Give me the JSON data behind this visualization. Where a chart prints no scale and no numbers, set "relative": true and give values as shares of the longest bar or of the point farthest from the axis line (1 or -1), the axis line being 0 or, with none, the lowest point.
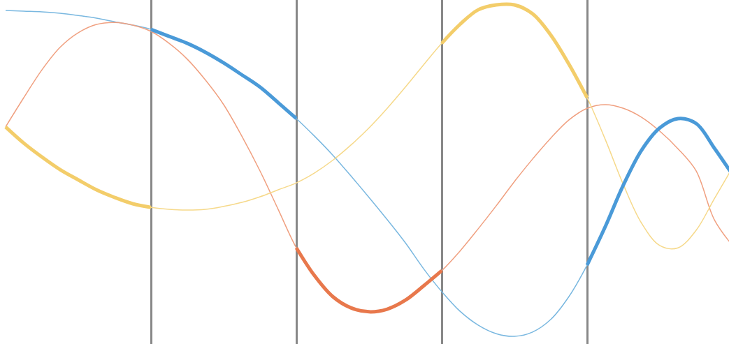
{
  "chart_data": {
    "type": "line",
    "relative": true,
    "grid": "x",
    "marker": "none",
    "line_style": "solid",
    "categories": [
      null,
      null,
      null,
      null,
      null,
      null,
      null,
      null,
      null,
      null,
      null,
      null,
      null,
      null,
      null,
      null,
      null,
      null,
      null,
      null,
      null,
      null,
      null,
      null,
      null,
      null,
      null,
      null,
      null,
      null,
      null,
      null,
      null,
      null,
      null,
      null,
      null,
      null,
      null,
      null,
      null
    ],
    "series": [
      {
        "color": "#7ab8e0",
        "values": [
          0.983,
          0.981,
          0.979,
          0.975,
          0.968,
          0.96,
          0.949,
          0.939,
          0.926,
          0.905,
          0.884,
          0.857,
          0.825,
          0.789,
          0.752,
          0.705,
          0.657,
          0.604,
          0.547,
          0.484,
          0.419,
          0.352,
          0.282,
          0.204,
          0.135,
          0.076,
          0.034,
          0.008,
          0,
          0.013,
          0.051,
          0.12,
          0.215,
          0.331,
          0.457,
          0.562,
          0.629,
          0.657,
          0.642,
          0.568,
          0.488
        ]
      },
      {
        "color": "#f0a080",
        "values": [
          0.632,
          0.72,
          0.804,
          0.872,
          0.916,
          0.941,
          0.947,
          0.939,
          0.92,
          0.884,
          0.836,
          0.773,
          0.699,
          0.604,
          0.499,
          0.383,
          0.267,
          0.183,
          0.12,
          0.086,
          0.074,
          0.082,
          0.109,
          0.152,
          0.198,
          0.257,
          0.324,
          0.394,
          0.467,
          0.535,
          0.598,
          0.653,
          0.688,
          0.699,
          0.688,
          0.661,
          0.619,
          0.566,
          0.499,
          0.352,
          0.274
        ]
      },
      {
        "color": "#f6d98a",
        "values": [
          0.632,
          0.583,
          0.541,
          0.503,
          0.472,
          0.442,
          0.419,
          0.4,
          0.389,
          0.383,
          0.381,
          0.383,
          0.392,
          0.404,
          0.421,
          0.442,
          0.463,
          0.493,
          0.531,
          0.577,
          0.629,
          0.688,
          0.752,
          0.819,
          0.884,
          0.941,
          0.985,
          1,
          1,
          0.973,
          0.909,
          0.821,
          0.72,
          0.594,
          0.457,
          0.341,
          0.274,
          0.267,
          0.32,
          0.415,
          0.509
        ]
      },
      {
        "color": "#f3cd6a",
        "values": [
          0.632,
          0.583,
          0.541,
          0.503,
          0.472,
          0.442,
          0.419,
          0.4,
          0.389,
          null,
          null,
          null,
          null,
          null,
          null,
          null,
          null,
          null,
          null,
          null,
          null,
          null,
          null,
          null,
          null,
          null,
          null,
          null,
          null,
          null,
          null,
          null,
          null,
          null,
          null,
          null,
          null,
          null,
          null,
          null,
          null
        ]
      },
      {
        "color": "#4a9ad8",
        "values": [
          null,
          null,
          null,
          null,
          null,
          null,
          null,
          null,
          0.926,
          0.905,
          0.884,
          0.857,
          0.825,
          0.789,
          0.752,
          0.705,
          0.657,
          null,
          null,
          null,
          null,
          null,
          null,
          null,
          null,
          null,
          null,
          null,
          null,
          null,
          null,
          null,
          null,
          null,
          null,
          null,
          null,
          null,
          null,
          null,
          null
        ]
      },
      {
        "color": "#e8784c",
        "values": [
          null,
          null,
          null,
          null,
          null,
          null,
          null,
          null,
          null,
          null,
          null,
          null,
          null,
          null,
          null,
          null,
          0.267,
          0.183,
          0.12,
          0.086,
          0.074,
          0.082,
          0.109,
          0.152,
          0.198,
          null,
          null,
          null,
          null,
          null,
          null,
          null,
          null,
          null,
          null,
          null,
          null,
          null,
          null,
          null,
          null
        ]
      },
      {
        "color": "#f3cd6a",
        "values": [
          null,
          null,
          null,
          null,
          null,
          null,
          null,
          null,
          null,
          null,
          null,
          null,
          null,
          null,
          null,
          null,
          null,
          null,
          null,
          null,
          null,
          null,
          null,
          null,
          0.884,
          0.941,
          0.985,
          1,
          1,
          0.973,
          0.909,
          0.821,
          0.72,
          null,
          null,
          null,
          null,
          null,
          null,
          null,
          null
        ]
      },
      {
        "color": "#4a9ad8",
        "values": [
          null,
          null,
          null,
          null,
          null,
          null,
          null,
          null,
          null,
          null,
          null,
          null,
          null,
          null,
          null,
          null,
          null,
          null,
          null,
          null,
          null,
          null,
          null,
          null,
          null,
          null,
          null,
          null,
          null,
          null,
          null,
          null,
          0.215,
          0.331,
          0.457,
          0.562,
          0.629,
          0.657,
          0.642,
          0.568,
          0.488
        ]
      }
    ]
  }
}
